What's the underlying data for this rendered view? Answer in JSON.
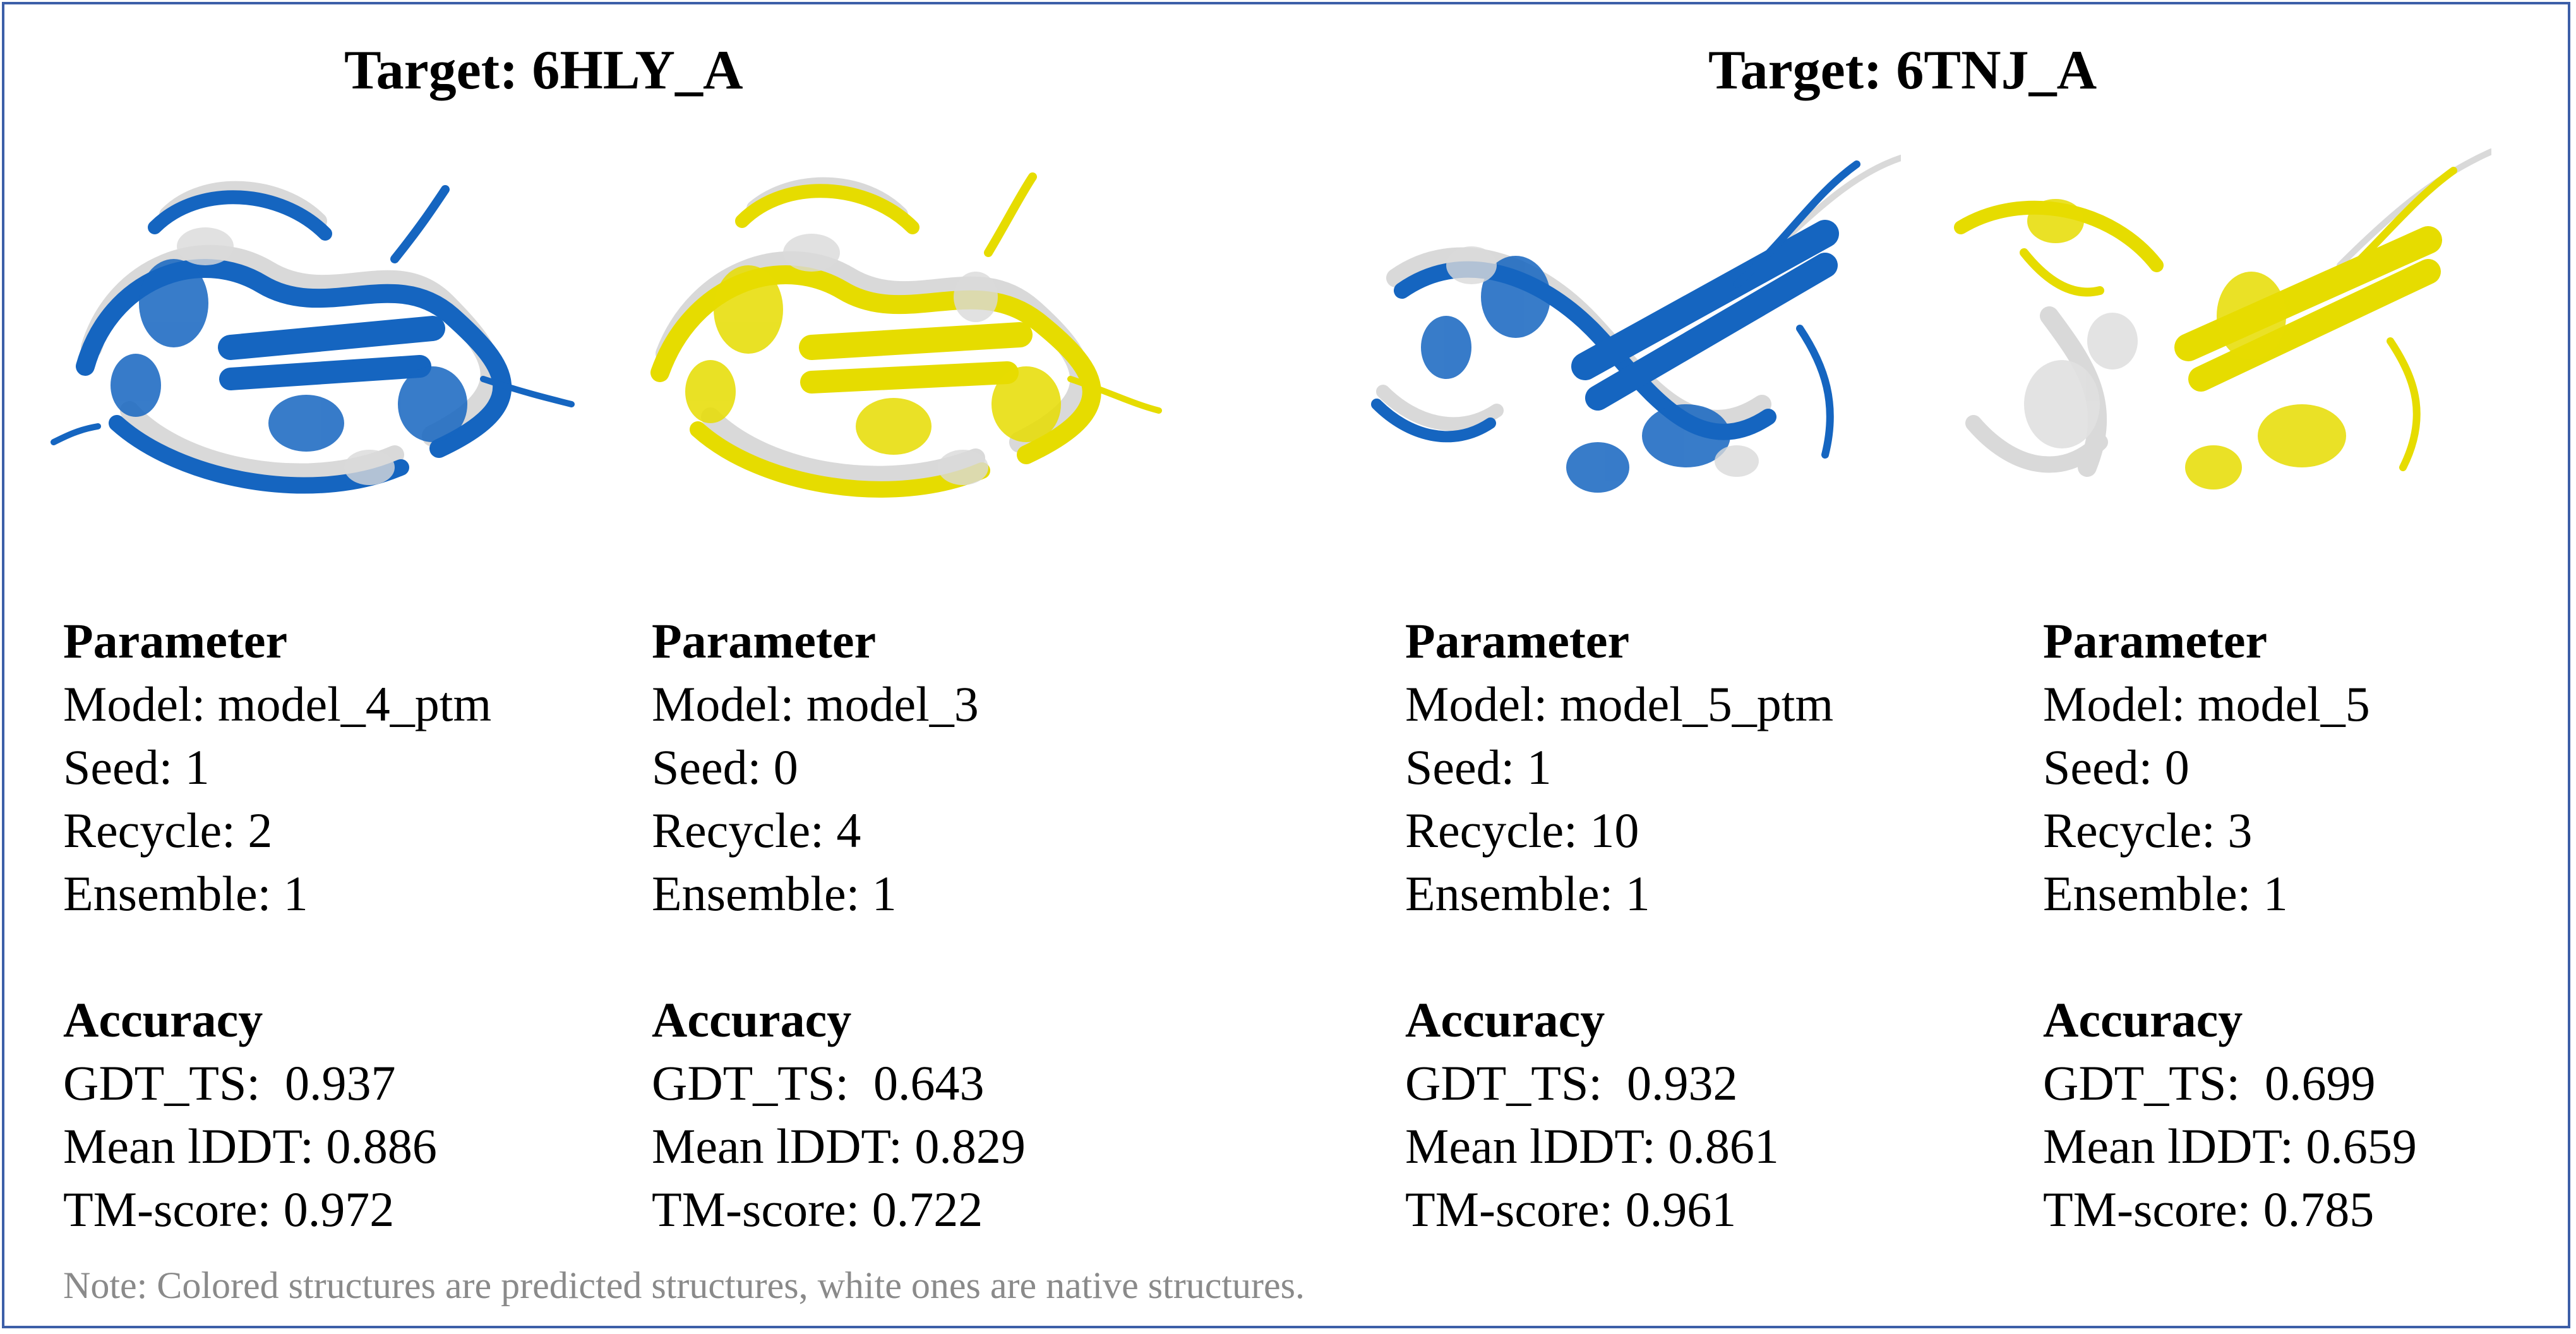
{
  "targets": [
    {
      "title": "Target: 6HLY_A",
      "panels": [
        {
          "structure_color": "#1565c0",
          "parameter_heading": "Parameter",
          "model": "Model: model_4_ptm",
          "seed": "Seed: 1",
          "recycle": "Recycle: 2",
          "ensemble": "Ensemble: 1",
          "accuracy_heading": "Accuracy",
          "gdt_ts": "GDT_TS:  0.937",
          "mean_lddt": "Mean lDDT: 0.886",
          "tm_score": "TM-score: 0.972"
        },
        {
          "structure_color": "#e6dc00",
          "parameter_heading": "Parameter",
          "model": "Model: model_3",
          "seed": "Seed: 0",
          "recycle": "Recycle: 4",
          "ensemble": "Ensemble: 1",
          "accuracy_heading": "Accuracy",
          "gdt_ts": "GDT_TS:  0.643",
          "mean_lddt": "Mean lDDT: 0.829",
          "tm_score": "TM-score: 0.722"
        }
      ]
    },
    {
      "title": "Target: 6TNJ_A",
      "panels": [
        {
          "structure_color": "#1565c0",
          "parameter_heading": "Parameter",
          "model": "Model: model_5_ptm",
          "seed": "Seed: 1",
          "recycle": "Recycle: 10",
          "ensemble": "Ensemble: 1",
          "accuracy_heading": "Accuracy",
          "gdt_ts": "GDT_TS:  0.932",
          "mean_lddt": "Mean lDDT: 0.861",
          "tm_score": "TM-score: 0.961"
        },
        {
          "structure_color": "#e6dc00",
          "parameter_heading": "Parameter",
          "model": "Model: model_5",
          "seed": "Seed: 0",
          "recycle": "Recycle: 3",
          "ensemble": "Ensemble: 1",
          "accuracy_heading": "Accuracy",
          "gdt_ts": "GDT_TS:  0.699",
          "mean_lddt": "Mean lDDT: 0.659",
          "tm_score": "TM-score: 0.785"
        }
      ]
    }
  ],
  "note": "Note: Colored structures are predicted structures, white ones are native structures.",
  "colors": {
    "border": "#3d5fa8",
    "predicted_blue": "#1565c0",
    "predicted_yellow": "#e6dc00",
    "native": "#d9d9d9",
    "note_text": "#8a8a8a"
  }
}
